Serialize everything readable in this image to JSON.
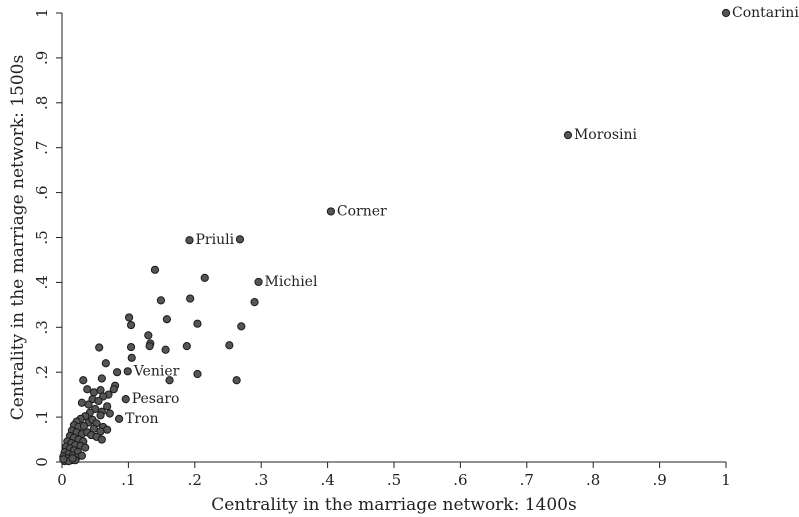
{
  "chart_data": {
    "type": "scatter",
    "xlabel": "Centrality in the marriage network: 1400s",
    "ylabel": "Centrality in the marriage network: 1500s",
    "xlim": [
      0,
      1
    ],
    "ylim": [
      0,
      1
    ],
    "x_ticks": [
      0,
      0.1,
      0.2,
      0.3,
      0.4,
      0.5,
      0.6,
      0.7,
      0.8,
      0.9,
      1
    ],
    "x_tick_labels": [
      "0",
      ".1",
      ".2",
      ".3",
      ".4",
      ".5",
      ".6",
      ".7",
      ".8",
      ".9",
      "1"
    ],
    "y_ticks": [
      0,
      0.1,
      0.2,
      0.3,
      0.4,
      0.5,
      0.6,
      0.7,
      0.8,
      0.9,
      1
    ],
    "y_tick_labels": [
      "0",
      ".1",
      ".2",
      ".3",
      ".4",
      ".5",
      ".6",
      ".7",
      ".8",
      ".9",
      "1"
    ],
    "grid": false,
    "marker_color": "#555555",
    "labeled_points": [
      {
        "label": "Contarini",
        "x": 1.0,
        "y": 1.0
      },
      {
        "label": "Morosini",
        "x": 0.762,
        "y": 0.728
      },
      {
        "label": "Corner",
        "x": 0.405,
        "y": 0.558
      },
      {
        "label": "Priuli",
        "x": 0.192,
        "y": 0.494
      },
      {
        "label": "Michiel",
        "x": 0.296,
        "y": 0.401
      },
      {
        "label": "Venier",
        "x": 0.099,
        "y": 0.202
      },
      {
        "label": "Pesaro",
        "x": 0.096,
        "y": 0.14
      },
      {
        "label": "Tron",
        "x": 0.086,
        "y": 0.096
      }
    ],
    "points": [
      {
        "x": 0.268,
        "y": 0.496
      },
      {
        "x": 0.14,
        "y": 0.428
      },
      {
        "x": 0.215,
        "y": 0.41
      },
      {
        "x": 0.149,
        "y": 0.36
      },
      {
        "x": 0.193,
        "y": 0.364
      },
      {
        "x": 0.29,
        "y": 0.356
      },
      {
        "x": 0.101,
        "y": 0.322
      },
      {
        "x": 0.158,
        "y": 0.318
      },
      {
        "x": 0.104,
        "y": 0.305
      },
      {
        "x": 0.204,
        "y": 0.308
      },
      {
        "x": 0.27,
        "y": 0.302
      },
      {
        "x": 0.13,
        "y": 0.282
      },
      {
        "x": 0.133,
        "y": 0.264
      },
      {
        "x": 0.132,
        "y": 0.258
      },
      {
        "x": 0.104,
        "y": 0.256
      },
      {
        "x": 0.156,
        "y": 0.25
      },
      {
        "x": 0.188,
        "y": 0.258
      },
      {
        "x": 0.252,
        "y": 0.26
      },
      {
        "x": 0.056,
        "y": 0.255
      },
      {
        "x": 0.105,
        "y": 0.232
      },
      {
        "x": 0.066,
        "y": 0.22
      },
      {
        "x": 0.083,
        "y": 0.2
      },
      {
        "x": 0.204,
        "y": 0.196
      },
      {
        "x": 0.162,
        "y": 0.182
      },
      {
        "x": 0.263,
        "y": 0.182
      },
      {
        "x": 0.032,
        "y": 0.182
      },
      {
        "x": 0.06,
        "y": 0.186
      },
      {
        "x": 0.08,
        "y": 0.17
      },
      {
        "x": 0.038,
        "y": 0.162
      },
      {
        "x": 0.048,
        "y": 0.155
      },
      {
        "x": 0.058,
        "y": 0.16
      },
      {
        "x": 0.07,
        "y": 0.15
      },
      {
        "x": 0.078,
        "y": 0.162
      },
      {
        "x": 0.062,
        "y": 0.146
      },
      {
        "x": 0.046,
        "y": 0.14
      },
      {
        "x": 0.055,
        "y": 0.136
      },
      {
        "x": 0.03,
        "y": 0.132
      },
      {
        "x": 0.04,
        "y": 0.128
      },
      {
        "x": 0.068,
        "y": 0.124
      },
      {
        "x": 0.05,
        "y": 0.118
      },
      {
        "x": 0.06,
        "y": 0.112
      },
      {
        "x": 0.072,
        "y": 0.108
      },
      {
        "x": 0.058,
        "y": 0.104
      },
      {
        "x": 0.042,
        "y": 0.11
      },
      {
        "x": 0.035,
        "y": 0.102
      },
      {
        "x": 0.028,
        "y": 0.096
      },
      {
        "x": 0.022,
        "y": 0.09
      },
      {
        "x": 0.04,
        "y": 0.088
      },
      {
        "x": 0.046,
        "y": 0.094
      },
      {
        "x": 0.052,
        "y": 0.086
      },
      {
        "x": 0.018,
        "y": 0.082
      },
      {
        "x": 0.025,
        "y": 0.078
      },
      {
        "x": 0.033,
        "y": 0.08
      },
      {
        "x": 0.048,
        "y": 0.074
      },
      {
        "x": 0.062,
        "y": 0.078
      },
      {
        "x": 0.068,
        "y": 0.072
      },
      {
        "x": 0.058,
        "y": 0.068
      },
      {
        "x": 0.015,
        "y": 0.07
      },
      {
        "x": 0.022,
        "y": 0.066
      },
      {
        "x": 0.03,
        "y": 0.062
      },
      {
        "x": 0.038,
        "y": 0.066
      },
      {
        "x": 0.044,
        "y": 0.06
      },
      {
        "x": 0.052,
        "y": 0.056
      },
      {
        "x": 0.06,
        "y": 0.05
      },
      {
        "x": 0.012,
        "y": 0.058
      },
      {
        "x": 0.018,
        "y": 0.054
      },
      {
        "x": 0.025,
        "y": 0.05
      },
      {
        "x": 0.032,
        "y": 0.046
      },
      {
        "x": 0.008,
        "y": 0.046
      },
      {
        "x": 0.014,
        "y": 0.042
      },
      {
        "x": 0.02,
        "y": 0.038
      },
      {
        "x": 0.028,
        "y": 0.036
      },
      {
        "x": 0.035,
        "y": 0.032
      },
      {
        "x": 0.006,
        "y": 0.034
      },
      {
        "x": 0.012,
        "y": 0.03
      },
      {
        "x": 0.018,
        "y": 0.026
      },
      {
        "x": 0.024,
        "y": 0.022
      },
      {
        "x": 0.004,
        "y": 0.022
      },
      {
        "x": 0.01,
        "y": 0.018
      },
      {
        "x": 0.016,
        "y": 0.014
      },
      {
        "x": 0.022,
        "y": 0.01
      },
      {
        "x": 0.03,
        "y": 0.014
      },
      {
        "x": 0.002,
        "y": 0.012
      },
      {
        "x": 0.008,
        "y": 0.008
      },
      {
        "x": 0.014,
        "y": 0.004
      },
      {
        "x": 0.004,
        "y": 0.002
      },
      {
        "x": 0.01,
        "y": 0.002
      },
      {
        "x": 0.02,
        "y": 0.004
      },
      {
        "x": 0.002,
        "y": 0.006
      },
      {
        "x": 0.016,
        "y": 0.008
      }
    ]
  }
}
